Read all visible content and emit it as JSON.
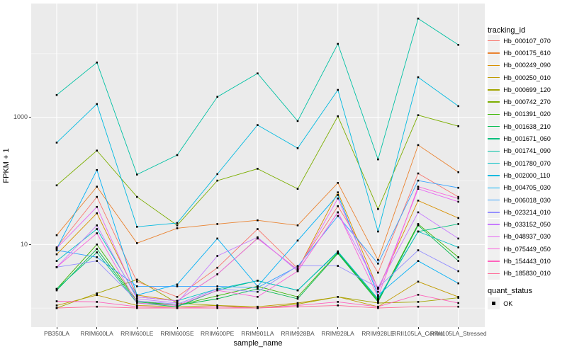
{
  "chart_data": {
    "type": "line",
    "title": "",
    "xlabel": "sample_name",
    "ylabel": "FPKM + 1",
    "y_scale": "log10",
    "y_ticks": [
      10,
      1000
    ],
    "y_tick_labels": [
      "10",
      "1000"
    ],
    "y_minor_ticks": [
      1,
      100,
      10000
    ],
    "ylim": [
      0.5,
      61000
    ],
    "grid": true,
    "legend_position": "right",
    "legend_title": "tracking_id",
    "point_marker": "black-square",
    "x_categories": [
      "PB350LA",
      "RRIM600LA",
      "RRIM600LE",
      "RRIM600SE",
      "RRIM600PE",
      "RRIM901LA",
      "RRIM928BA",
      "RRIM928LA",
      "RRIM928LE",
      "RRII105LA_Control",
      "RRII105LA_Stressed"
    ],
    "series": [
      {
        "name": "Hb_000107_070",
        "color": "#F8766D",
        "values": [
          9,
          56,
          2.6,
          1.5,
          4.3,
          17.5,
          4.2,
          40,
          3.6,
          131,
          56
        ]
      },
      {
        "name": "Hb_000175_610",
        "color": "#EA8331",
        "values": [
          14,
          81,
          10.5,
          18,
          21,
          24,
          20,
          93,
          5.7,
          366,
          137
        ]
      },
      {
        "name": "Hb_000249_090",
        "color": "#D89000",
        "values": [
          7,
          31,
          1.6,
          1.3,
          3.4,
          12.5,
          4.0,
          66,
          2.0,
          49,
          26
        ]
      },
      {
        "name": "Hb_000250_010",
        "color": "#C09B00",
        "values": [
          1.1,
          1.6,
          1.1,
          1.05,
          1.1,
          1.05,
          1.2,
          1.5,
          1.05,
          2.6,
          1.5
        ]
      },
      {
        "name": "Hb_000699_120",
        "color": "#A3A500",
        "values": [
          1.0,
          1.7,
          2.8,
          1.2,
          1.1,
          1.0,
          1.15,
          1.5,
          1.2,
          1.25,
          1.45
        ]
      },
      {
        "name": "Hb_000742_270",
        "color": "#7CAE00",
        "values": [
          85,
          300,
          56,
          20,
          101,
          155,
          75,
          1040,
          36,
          1080,
          725
        ]
      },
      {
        "name": "Hb_001391_020",
        "color": "#39B600",
        "values": [
          2.0,
          10,
          1.3,
          1.1,
          1.56,
          2.2,
          1.5,
          7.4,
          1.3,
          21,
          6.3
        ]
      },
      {
        "name": "Hb_001638_210",
        "color": "#00BB4E",
        "values": [
          1.9,
          8.5,
          1.25,
          1.1,
          1.4,
          2.0,
          1.4,
          7.2,
          1.25,
          20,
          5.5
        ]
      },
      {
        "name": "Hb_001671_060",
        "color": "#00BF7D",
        "values": [
          2.0,
          7.5,
          1.2,
          1.05,
          1.9,
          2.7,
          1.9,
          7.6,
          1.35,
          16,
          21
        ]
      },
      {
        "name": "Hb_001741_090",
        "color": "#00C1A3",
        "values": [
          2240,
          7280,
          126,
          255,
          2100,
          4900,
          875,
          14300,
          218,
          35800,
          13800
        ]
      },
      {
        "name": "Hb_001780_070",
        "color": "#00BFC4",
        "values": [
          5.5,
          17.5,
          1.5,
          1.3,
          2.0,
          2.7,
          1.9,
          7.8,
          1.4,
          16,
          9
        ]
      },
      {
        "name": "Hb_002000_110",
        "color": "#00BAE0",
        "values": [
          400,
          1615,
          19,
          21.8,
          128,
          756,
          327,
          2700,
          16,
          4270,
          1500
        ]
      },
      {
        "name": "Hb_004705_030",
        "color": "#00B0F6",
        "values": [
          8.5,
          148,
          1.6,
          2.35,
          12.4,
          2.2,
          11.5,
          60,
          1.6,
          5.5,
          2.45
        ]
      },
      {
        "name": "Hb_006018_030",
        "color": "#35A2FF",
        "values": [
          8.1,
          6.3,
          2.2,
          2.2,
          2.2,
          2.1,
          4.5,
          28,
          5.0,
          101,
          78
        ]
      },
      {
        "name": "Hb_023214_010",
        "color": "#9590FF",
        "values": [
          4.4,
          5.5,
          1.3,
          1.15,
          2.0,
          1.8,
          4.6,
          4.6,
          2.1,
          8.1,
          3.8
        ]
      },
      {
        "name": "Hb_033152_050",
        "color": "#C77CFF",
        "values": [
          4.4,
          20,
          1.4,
          1.2,
          6.6,
          13,
          3.8,
          32,
          2.1,
          32,
          12.4
        ]
      },
      {
        "name": "Hb_048937_030",
        "color": "#E76BF3",
        "values": [
          8.7,
          39,
          1.5,
          1.3,
          3.4,
          12.4,
          4.0,
          53,
          1.8,
          75,
          47
        ]
      },
      {
        "name": "Hb_075449_050",
        "color": "#FA62DB",
        "values": [
          4.4,
          15,
          1.2,
          1.1,
          1.9,
          1.5,
          3.8,
          32,
          1.5,
          81,
          53
        ]
      },
      {
        "name": "Hb_154443_010",
        "color": "#FF62BC",
        "values": [
          1.28,
          1.25,
          1.05,
          1.0,
          1.05,
          1.0,
          1.1,
          1.25,
          1.05,
          1.62,
          1.2
        ]
      },
      {
        "name": "Hb_185830_010",
        "color": "#FF6A98",
        "values": [
          1.0,
          1.05,
          1.0,
          1.0,
          1.0,
          1.0,
          1.05,
          1.1,
          1.0,
          1.05,
          1.05
        ]
      }
    ],
    "quant_status": {
      "title": "quant_status",
      "items": [
        {
          "label": "OK",
          "marker": "black-square"
        }
      ]
    },
    "style": {
      "panel_background": "#EBEBEB",
      "gridline_color": "#FFFFFF",
      "tick_label_color": "#4D4D4D",
      "point_color": "#000000",
      "legend_key_background": "#F0F0F0"
    }
  }
}
